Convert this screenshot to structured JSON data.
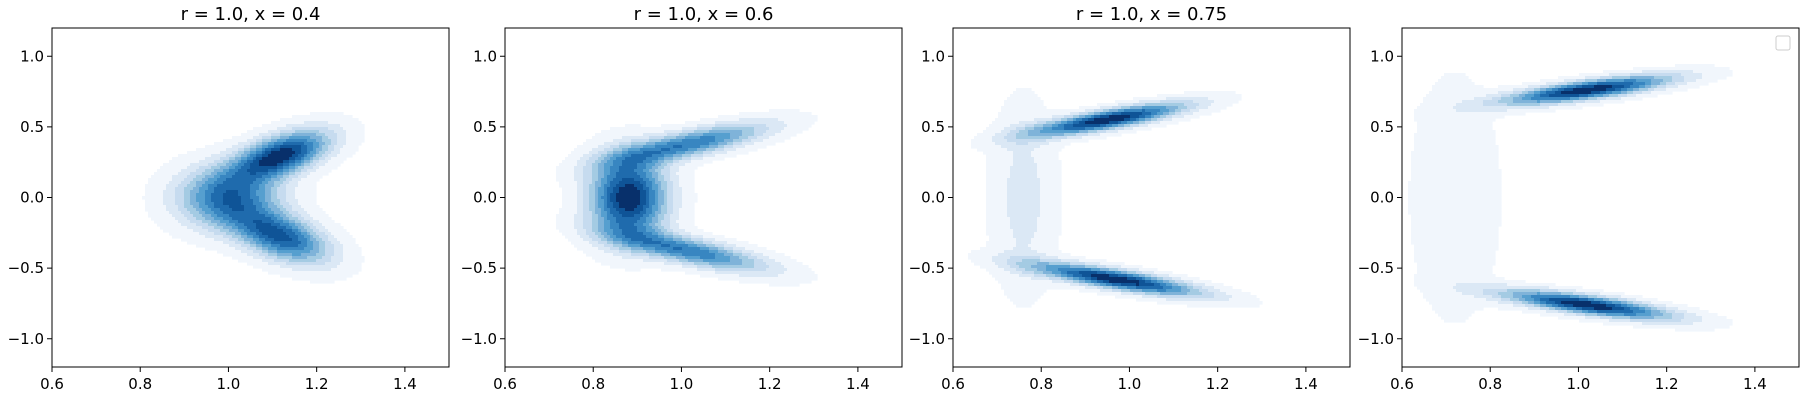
{
  "figure": {
    "palette": [
      "#f1f6fc",
      "#dbe8f5",
      "#c6dbef",
      "#a4cbe3",
      "#7fb3d9",
      "#569fcf",
      "#3886c1",
      "#1f6bad",
      "#0f5497",
      "#08306b"
    ]
  },
  "chart_data": [
    {
      "type": "contour",
      "title": "r = 1.0, x = 0.4",
      "xlabel": "",
      "ylabel": "",
      "xlim": [
        0.6,
        1.5
      ],
      "ylim": [
        -1.2,
        1.2
      ],
      "xticks": [
        0.6,
        0.8,
        1.0,
        1.2,
        1.4
      ],
      "xtick_labels": [
        "0.6",
        "0.8",
        "1.0",
        "1.2",
        "1.4"
      ],
      "yticks": [
        -1.0,
        -0.5,
        0.0,
        0.5,
        1.0
      ],
      "ytick_labels": [
        "−1.0",
        "−0.5",
        "0.0",
        "0.5",
        "1.0"
      ],
      "grid": false,
      "legend": false,
      "levels": 10,
      "density_components": [
        {
          "mx": 1.12,
          "my": 0.3,
          "sx": 0.075,
          "sy": 0.12,
          "rho": 0.55,
          "w": 1.0
        },
        {
          "mx": 1.12,
          "my": -0.28,
          "sx": 0.075,
          "sy": 0.13,
          "rho": -0.5,
          "w": 0.85
        },
        {
          "mx": 1.0,
          "my": 0.0,
          "sx": 0.08,
          "sy": 0.15,
          "rho": 0.0,
          "w": 0.75
        }
      ]
    },
    {
      "type": "contour",
      "title": "r = 1.0, x = 0.6",
      "xlabel": "",
      "ylabel": "",
      "xlim": [
        0.6,
        1.5
      ],
      "ylim": [
        -1.2,
        1.2
      ],
      "xticks": [
        0.6,
        0.8,
        1.0,
        1.2,
        1.4
      ],
      "xtick_labels": [
        "0.6",
        "0.8",
        "1.0",
        "1.2",
        "1.4"
      ],
      "yticks": [
        -1.0,
        -0.5,
        0.0,
        0.5,
        1.0
      ],
      "ytick_labels": [
        "−1.0",
        "−0.5",
        "0.0",
        "0.5",
        "1.0"
      ],
      "grid": false,
      "legend": false,
      "levels": 10,
      "density_components": [
        {
          "mx": 0.88,
          "my": 0.0,
          "sx": 0.06,
          "sy": 0.2,
          "rho": 0.0,
          "w": 1.0
        },
        {
          "mx": 1.02,
          "my": 0.38,
          "sx": 0.12,
          "sy": 0.1,
          "rho": 0.75,
          "w": 0.7
        },
        {
          "mx": 1.02,
          "my": -0.38,
          "sx": 0.12,
          "sy": 0.1,
          "rho": -0.75,
          "w": 0.7
        }
      ]
    },
    {
      "type": "contour",
      "title": "r = 1.0, x = 0.75",
      "xlabel": "",
      "ylabel": "",
      "xlim": [
        0.6,
        1.5
      ],
      "ylim": [
        -1.2,
        1.2
      ],
      "xticks": [
        0.6,
        0.8,
        1.0,
        1.2,
        1.4
      ],
      "xtick_labels": [
        "0.6",
        "0.8",
        "1.0",
        "1.2",
        "1.4"
      ],
      "yticks": [
        -1.0,
        -0.5,
        0.0,
        0.5,
        1.0
      ],
      "ytick_labels": [
        "−1.0",
        "−0.5",
        "0.0",
        "0.5",
        "1.0"
      ],
      "grid": false,
      "legend": false,
      "levels": 10,
      "density_components": [
        {
          "mx": 0.95,
          "my": 0.55,
          "sx": 0.12,
          "sy": 0.08,
          "rho": 0.8,
          "w": 1.0
        },
        {
          "mx": 0.97,
          "my": -0.58,
          "sx": 0.13,
          "sy": 0.08,
          "rho": -0.8,
          "w": 1.0
        },
        {
          "mx": 0.76,
          "my": 0.0,
          "sx": 0.05,
          "sy": 0.45,
          "rho": 0.0,
          "w": 0.18
        }
      ]
    },
    {
      "type": "contour",
      "title": "",
      "xlabel": "",
      "ylabel": "",
      "xlim": [
        0.6,
        1.5
      ],
      "ylim": [
        -1.2,
        1.2
      ],
      "xticks": [
        0.6,
        0.8,
        1.0,
        1.2,
        1.4
      ],
      "xtick_labels": [
        "0.6",
        "0.8",
        "1.0",
        "1.2",
        "1.4"
      ],
      "yticks": [
        -1.0,
        -0.5,
        0.0,
        0.5,
        1.0
      ],
      "ytick_labels": [
        "−1.0",
        "−0.5",
        "0.0",
        "0.5",
        "1.0"
      ],
      "grid": false,
      "legend": true,
      "legend_placement": "top-right",
      "levels": 10,
      "density_components": [
        {
          "mx": 1.02,
          "my": 0.76,
          "sx": 0.13,
          "sy": 0.07,
          "rho": 0.75,
          "w": 1.0
        },
        {
          "mx": 1.02,
          "my": -0.76,
          "sx": 0.13,
          "sy": 0.07,
          "rho": -0.75,
          "w": 1.0
        },
        {
          "mx": 0.72,
          "my": 0.0,
          "sx": 0.07,
          "sy": 0.6,
          "rho": 0.0,
          "w": 0.12
        }
      ]
    }
  ]
}
